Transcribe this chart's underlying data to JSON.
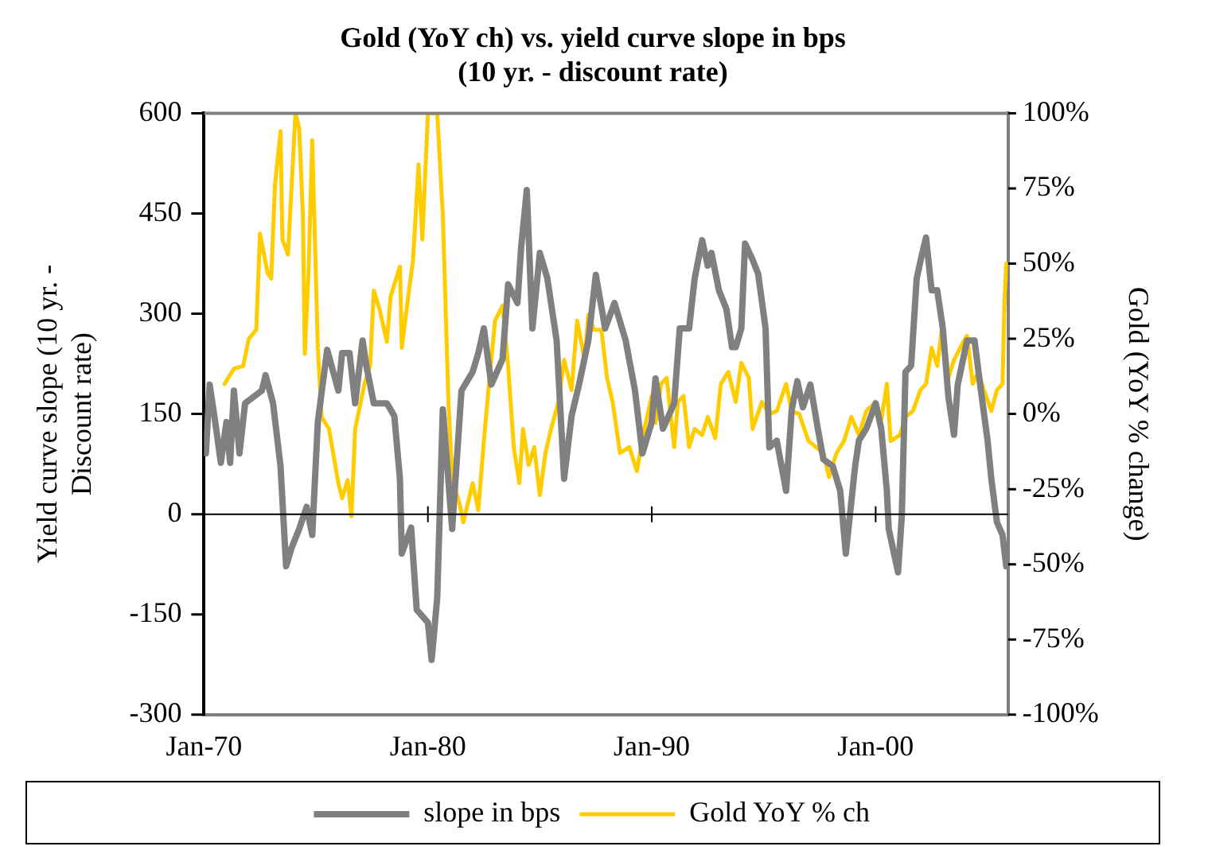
{
  "chart_data": {
    "type": "line",
    "title": "Gold (YoY ch) vs. yield curve slope in bps (10 yr. - discount rate)",
    "ylabel": "Yield curve slope (10 yr. - Discount rate)",
    "y2label": "Gold (YoY % change)",
    "xlim": [
      "1970-01",
      "2005-12"
    ],
    "xticks": [
      {
        "value": "1970-01",
        "label": "Jan-70"
      },
      {
        "value": "1980-01",
        "label": "Jan-80"
      },
      {
        "value": "1990-01",
        "label": "Jan-90"
      },
      {
        "value": "2000-01",
        "label": "Jan-00"
      }
    ],
    "ylim": [
      -300,
      600
    ],
    "yticks": [
      -300,
      -150,
      0,
      150,
      300,
      450,
      600
    ],
    "y2lim": [
      -100,
      100
    ],
    "y2ticks": [
      {
        "value": -100,
        "label": "-100%"
      },
      {
        "value": -75,
        "label": "-75%"
      },
      {
        "value": -50,
        "label": "-50%"
      },
      {
        "value": -25,
        "label": "-25%"
      },
      {
        "value": 0,
        "label": "0%"
      },
      {
        "value": 25,
        "label": "25%"
      },
      {
        "value": 50,
        "label": "50%"
      },
      {
        "value": 75,
        "label": "75%"
      },
      {
        "value": 100,
        "label": "100%"
      }
    ],
    "ref_lines": [
      {
        "axis": "y",
        "value": 0,
        "color": "#000000"
      }
    ],
    "grid": false,
    "legend": "bottom",
    "marker": "none",
    "line_style": "solid",
    "series": [
      {
        "name": "slope in bps",
        "color": "#808080",
        "x": [
          "1970-02",
          "1970-04",
          "1970-07",
          "1970-10",
          "1971-01",
          "1971-03",
          "1971-05",
          "1971-08",
          "1971-11",
          "1972-08",
          "1972-10",
          "1973-02",
          "1973-06",
          "1973-09",
          "1973-12",
          "1974-04",
          "1974-08",
          "1974-11",
          "1975-02",
          "1975-07",
          "1976-01",
          "1976-03",
          "1976-07",
          "1976-10",
          "1977-02",
          "1977-04",
          "1977-08",
          "1978-03",
          "1978-07",
          "1978-10",
          "1978-11",
          "1979-04",
          "1979-07",
          "1980-01",
          "1980-03",
          "1980-06",
          "1980-09",
          "1981-02",
          "1981-07",
          "1982-01",
          "1982-04",
          "1982-07",
          "1982-11",
          "1983-05",
          "1983-08",
          "1984-01",
          "1984-03",
          "1984-06",
          "1984-09",
          "1985-01",
          "1985-05",
          "1985-10",
          "1986-02",
          "1986-06",
          "1986-10",
          "1987-03",
          "1987-07",
          "1987-12",
          "1988-05",
          "1988-11",
          "1989-04",
          "1989-08",
          "1990-01",
          "1990-03",
          "1990-07",
          "1991-01",
          "1991-04",
          "1991-09",
          "1991-12",
          "1992-04",
          "1992-07",
          "1992-09",
          "1993-01",
          "1993-05",
          "1993-08",
          "1993-10",
          "1994-01",
          "1994-03",
          "1994-07",
          "1994-10",
          "1995-02",
          "1995-04",
          "1995-08",
          "1996-01",
          "1996-04",
          "1996-07",
          "1996-10",
          "1997-02",
          "1997-06",
          "1997-09",
          "1998-02",
          "1998-06",
          "1998-09",
          "1999-02",
          "1999-04",
          "1999-08",
          "2000-01",
          "2000-04",
          "2000-07",
          "2000-08",
          "2001-01",
          "2001-03",
          "2001-05",
          "2001-08",
          "2001-11",
          "2002-02",
          "2002-04",
          "2002-07",
          "2002-10",
          "2003-01",
          "2003-04",
          "2003-07",
          "2003-09",
          "2004-02",
          "2004-06",
          "2004-09",
          "2005-01",
          "2005-03",
          "2005-06",
          "2005-09",
          "2005-11"
        ],
        "values": [
          91,
          194,
          138,
          77,
          138,
          77,
          185,
          91,
          166,
          185,
          208,
          166,
          72,
          -78,
          -50,
          -22,
          11,
          -31,
          138,
          246,
          185,
          241,
          241,
          166,
          260,
          222,
          166,
          166,
          147,
          53,
          -59,
          -20,
          -143,
          -162,
          -218,
          -125,
          157,
          -22,
          185,
          213,
          241,
          278,
          194,
          232,
          344,
          316,
          400,
          485,
          278,
          391,
          353,
          260,
          53,
          147,
          194,
          260,
          358,
          278,
          316,
          260,
          185,
          91,
          138,
          203,
          128,
          166,
          278,
          278,
          353,
          410,
          372,
          391,
          335,
          307,
          250,
          250,
          278,
          405,
          381,
          360,
          278,
          100,
          110,
          35,
          156,
          199,
          160,
          194,
          128,
          82,
          72,
          35,
          -59,
          72,
          110,
          128,
          166,
          128,
          35,
          -22,
          -87,
          -3,
          213,
          222,
          353,
          391,
          414,
          335,
          335,
          278,
          175,
          119,
          194,
          260,
          260,
          194,
          110,
          53,
          -12,
          -31,
          -78
        ]
      },
      {
        "name": "Gold YoY % ch",
        "color": "#ffcc00",
        "axis": "y2",
        "x": [
          "1970-12",
          "1971-05",
          "1971-10",
          "1972-01",
          "1972-05",
          "1972-07",
          "1972-11",
          "1973-01",
          "1973-03",
          "1973-06",
          "1973-07",
          "1973-10",
          "1974-02",
          "1974-04",
          "1974-06",
          "1974-07",
          "1974-09",
          "1974-11",
          "1975-02",
          "1975-04",
          "1975-08",
          "1976-01",
          "1976-03",
          "1976-06",
          "1976-08",
          "1976-10",
          "1977-03",
          "1977-06",
          "1977-08",
          "1977-11",
          "1978-03",
          "1978-05",
          "1978-10",
          "1978-11",
          "1979-02",
          "1979-05",
          "1979-08",
          "1979-10",
          "1980-01",
          "1980-06",
          "1980-09",
          "1980-12",
          "1981-02",
          "1981-06",
          "1981-08",
          "1982-01",
          "1982-04",
          "1982-07",
          "1982-10",
          "1983-01",
          "1983-05",
          "1983-08",
          "1983-11",
          "1984-02",
          "1984-04",
          "1984-07",
          "1984-10",
          "1985-01",
          "1985-04",
          "1985-07",
          "1985-11",
          "1986-02",
          "1986-06",
          "1986-09",
          "1987-01",
          "1987-03",
          "1987-06",
          "1987-10",
          "1988-01",
          "1988-04",
          "1988-08",
          "1989-01",
          "1989-05",
          "1989-09",
          "1990-01",
          "1990-03",
          "1990-06",
          "1990-09",
          "1991-01",
          "1991-03",
          "1991-06",
          "1991-09",
          "1991-12",
          "1992-04",
          "1992-07",
          "1992-11",
          "1993-02",
          "1993-06",
          "1993-10",
          "1994-01",
          "1994-05",
          "1994-07",
          "1994-12",
          "1995-04",
          "1995-08",
          "1996-01",
          "1996-04",
          "1996-08",
          "1997-01",
          "1997-05",
          "1997-09",
          "1997-12",
          "1998-04",
          "1998-08",
          "1998-12",
          "1999-04",
          "1999-08",
          "2000-01",
          "2000-04",
          "2000-07",
          "2000-09",
          "2001-02",
          "2001-05",
          "2001-09",
          "2002-01",
          "2002-04",
          "2002-07",
          "2002-10",
          "2003-01",
          "2003-04",
          "2003-07",
          "2003-12",
          "2004-02",
          "2004-05",
          "2004-08",
          "2004-11",
          "2005-03",
          "2005-06",
          "2005-09",
          "2005-10",
          "2005-11"
        ],
        "values": [
          10,
          15,
          16,
          25,
          28,
          60,
          47,
          45,
          76,
          94,
          58,
          53,
          100,
          95,
          66,
          20,
          47,
          91,
          22,
          -1,
          -5,
          -23,
          -28,
          -22,
          -34,
          -5,
          10,
          16,
          41,
          35,
          24,
          39,
          49,
          22,
          37,
          51,
          83,
          58,
          100,
          100,
          66,
          4,
          -21,
          -30,
          -36,
          -23,
          -32,
          -9,
          12,
          31,
          36,
          16,
          -11,
          -23,
          -5,
          -17,
          -11,
          -27,
          -13,
          -5,
          4,
          18,
          8,
          31,
          18,
          33,
          28,
          28,
          12,
          4,
          -13,
          -11,
          -19,
          -5,
          6,
          -3,
          10,
          12,
          -11,
          4,
          6,
          -11,
          -5,
          -7,
          -1,
          -8,
          10,
          14,
          4,
          17,
          12,
          -5,
          4,
          0,
          1,
          10,
          1,
          0,
          -9,
          -11,
          -13,
          -21,
          -13,
          -9,
          -1,
          -7,
          1,
          4,
          -2,
          10,
          -9,
          -7,
          -1,
          1,
          8,
          10,
          22,
          16,
          31,
          12,
          18,
          24,
          26,
          10,
          14,
          8,
          1,
          8,
          10,
          37,
          50
        ]
      }
    ]
  }
}
